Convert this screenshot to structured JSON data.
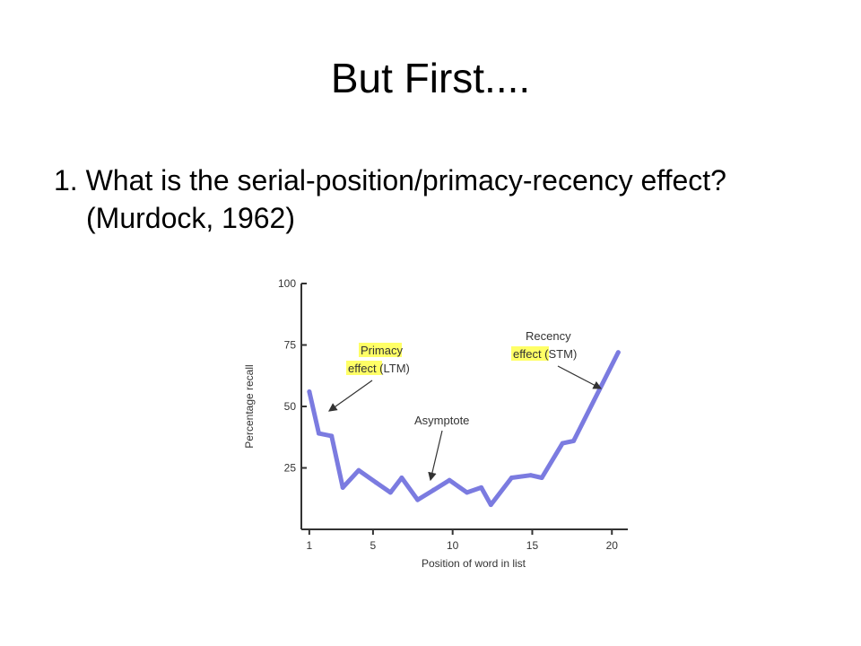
{
  "slide": {
    "title": "But First....",
    "item": "1. What is the serial-position/primacy-recency effect? (Murdock, 1962)"
  },
  "chart_data": {
    "type": "line",
    "title": "",
    "xlabel": "Position of word in list",
    "ylabel": "Percentage recall",
    "xlim": [
      0.5,
      21
    ],
    "ylim": [
      0,
      100
    ],
    "xticks": [
      1,
      5,
      10,
      15,
      20
    ],
    "yticks": [
      25,
      50,
      75,
      100
    ],
    "grid": false,
    "colors": {
      "line": "#7B7BE0",
      "axis": "#333333",
      "highlight": "#FFFF66"
    },
    "x": [
      1,
      1.6,
      2.4,
      3.1,
      4.1,
      5.2,
      6.1,
      6.8,
      7.8,
      8.8,
      9.8,
      10.9,
      11.8,
      12.4,
      13.7,
      14.9,
      15.6,
      16.9,
      17.6,
      20.4
    ],
    "values": [
      56,
      39,
      38,
      17,
      24,
      19,
      15,
      21,
      12,
      16,
      20,
      15,
      17,
      10,
      21,
      22,
      21,
      35,
      36,
      72
    ],
    "annotations": {
      "primacy": {
        "line1": "Primacy",
        "line2_highlight": "effect",
        "line2_rest": " (LTM)"
      },
      "recency": {
        "line1": "Recency",
        "line2_highlight": "effect",
        "line2_rest": " (STM)"
      },
      "asymptote": {
        "text": "Asymptote"
      }
    }
  }
}
